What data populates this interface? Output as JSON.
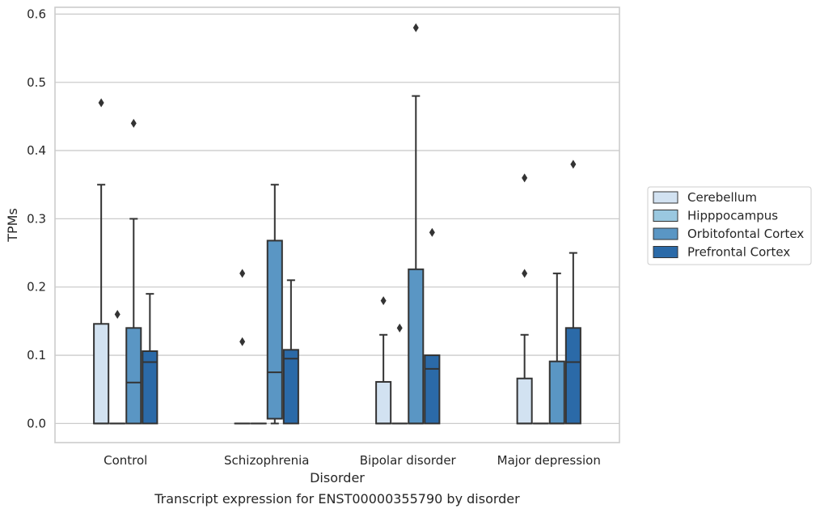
{
  "caption": "Transcript expression for ENST00000355790 by disorder",
  "chart_data": {
    "type": "box",
    "xlabel": "Disorder",
    "ylabel": "TPMs",
    "ylim": [
      -0.028,
      0.61
    ],
    "yticks": [
      0.0,
      0.1,
      0.2,
      0.3,
      0.4,
      0.5,
      0.6
    ],
    "ytick_labels": [
      "0.0",
      "0.1",
      "0.2",
      "0.3",
      "0.4",
      "0.5",
      "0.6"
    ],
    "grid": "horizontal",
    "legend_position": "outside-right",
    "categories": [
      "Control",
      "Schizophrenia",
      "Bipolar disorder",
      "Major depression"
    ],
    "series": [
      {
        "name": "Cerebellum",
        "color": "#d2e2f1",
        "boxes": [
          {
            "whislo": 0.0,
            "q1": 0.0,
            "med": 0.0,
            "q3": 0.146,
            "whishi": 0.35,
            "fliers": [
              0.47
            ]
          },
          {
            "whislo": 0.0,
            "q1": 0.0,
            "med": 0.0,
            "q3": 0.0,
            "whishi": 0.0,
            "fliers": [
              0.12,
              0.22
            ]
          },
          {
            "whislo": 0.0,
            "q1": 0.0,
            "med": 0.0,
            "q3": 0.061,
            "whishi": 0.13,
            "fliers": [
              0.18
            ]
          },
          {
            "whislo": 0.0,
            "q1": 0.0,
            "med": 0.0,
            "q3": 0.066,
            "whishi": 0.13,
            "fliers": [
              0.22,
              0.36
            ]
          }
        ]
      },
      {
        "name": "Hipppocampus",
        "color": "#9ac8e0",
        "boxes": [
          {
            "whislo": 0.0,
            "q1": 0.0,
            "med": 0.0,
            "q3": 0.0,
            "whishi": 0.0,
            "fliers": [
              0.16
            ]
          },
          {
            "whislo": 0.0,
            "q1": 0.0,
            "med": 0.0,
            "q3": 0.0,
            "whishi": 0.0,
            "fliers": []
          },
          {
            "whislo": 0.0,
            "q1": 0.0,
            "med": 0.0,
            "q3": 0.0,
            "whishi": 0.0,
            "fliers": [
              0.14
            ]
          },
          {
            "whislo": 0.0,
            "q1": 0.0,
            "med": 0.0,
            "q3": 0.0,
            "whishi": 0.0,
            "fliers": []
          }
        ]
      },
      {
        "name": "Orbitofontal Cortex",
        "color": "#5a96c4",
        "boxes": [
          {
            "whislo": 0.0,
            "q1": 0.0,
            "med": 0.06,
            "q3": 0.14,
            "whishi": 0.3,
            "fliers": [
              0.44
            ]
          },
          {
            "whislo": 0.0,
            "q1": 0.007,
            "med": 0.075,
            "q3": 0.268,
            "whishi": 0.35,
            "fliers": []
          },
          {
            "whislo": 0.0,
            "q1": 0.0,
            "med": 0.0,
            "q3": 0.226,
            "whishi": 0.48,
            "fliers": [
              0.58
            ]
          },
          {
            "whislo": 0.0,
            "q1": 0.0,
            "med": 0.0,
            "q3": 0.091,
            "whishi": 0.22,
            "fliers": []
          }
        ]
      },
      {
        "name": "Prefrontal Cortex",
        "color": "#2b6aa8",
        "boxes": [
          {
            "whislo": 0.0,
            "q1": 0.0,
            "med": 0.09,
            "q3": 0.106,
            "whishi": 0.19,
            "fliers": []
          },
          {
            "whislo": 0.0,
            "q1": 0.0,
            "med": 0.095,
            "q3": 0.108,
            "whishi": 0.21,
            "fliers": []
          },
          {
            "whislo": 0.0,
            "q1": 0.0,
            "med": 0.08,
            "q3": 0.1,
            "whishi": 0.1,
            "fliers": [
              0.28
            ]
          },
          {
            "whislo": 0.0,
            "q1": 0.0,
            "med": 0.09,
            "q3": 0.14,
            "whishi": 0.25,
            "fliers": [
              0.38
            ]
          }
        ]
      }
    ]
  }
}
